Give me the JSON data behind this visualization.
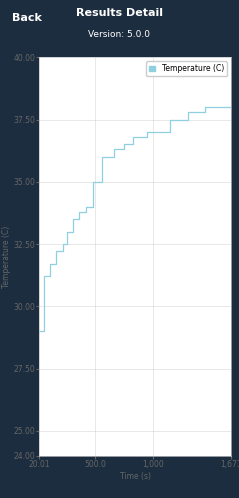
{
  "title": "Results Detail",
  "subtitle": "Version: 5.0.0",
  "xlabel": "Time (s)",
  "ylabel": "Temperature (C)",
  "legend_label": "Temperature (C)",
  "line_color": "#8ecfe0",
  "background_color": "#1c2d3f",
  "plot_bg_color": "#ffffff",
  "grid_color": "#cccccc",
  "text_color": "#ffffff",
  "axis_text_color": "#666666",
  "xlim": [
    20.01,
    1671
  ],
  "ylim": [
    24.0,
    40.0
  ],
  "xticks": [
    20.01,
    500.0,
    1000,
    1671
  ],
  "xtick_labels": [
    "20.01",
    "500.0",
    "1,000",
    "1,671"
  ],
  "yticks": [
    24.0,
    25.0,
    27.5,
    30.0,
    32.5,
    35.0,
    37.5,
    40.0
  ],
  "ytick_labels": [
    "24.00",
    "25.00",
    "27.50",
    "30.00",
    "32.50",
    "35.00",
    "37.50",
    "40.00"
  ],
  "time_data": [
    20.01,
    60,
    60,
    110,
    110,
    160,
    160,
    220,
    220,
    260,
    260,
    310,
    310,
    360,
    360,
    420,
    420,
    480,
    480,
    560,
    560,
    660,
    660,
    750,
    750,
    830,
    830,
    950,
    950,
    1050,
    1050,
    1150,
    1150,
    1300,
    1300,
    1450,
    1450,
    1671
  ],
  "temp_data": [
    29.0,
    29.0,
    31.2,
    31.2,
    31.7,
    31.7,
    32.2,
    32.2,
    32.5,
    32.5,
    33.0,
    33.0,
    33.5,
    33.5,
    33.8,
    33.8,
    34.0,
    34.0,
    35.0,
    35.0,
    36.0,
    36.0,
    36.3,
    36.3,
    36.5,
    36.5,
    36.8,
    36.8,
    37.0,
    37.0,
    37.0,
    37.0,
    37.5,
    37.5,
    37.8,
    37.8,
    38.0,
    38.0
  ],
  "header_color": "#1e3a5f",
  "title_fontsize": 8,
  "subtitle_fontsize": 6.5,
  "axis_fontsize": 5.5,
  "legend_fontsize": 5.5
}
